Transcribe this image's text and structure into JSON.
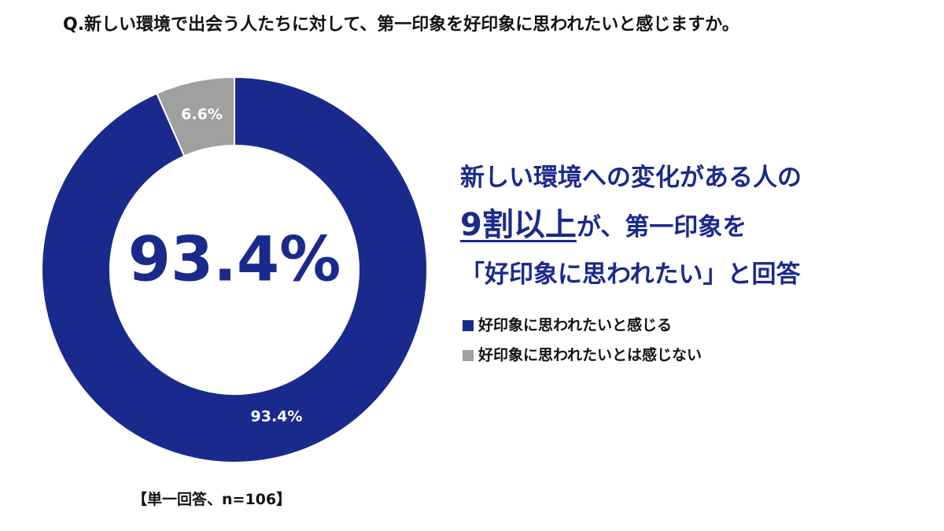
{
  "chart_data": {
    "type": "pie",
    "title": "Q.新しい環境で出会う人たちに対して、第一印象を好印象に思われたいと感じますか。",
    "categories": [
      "好印象に思われたいと感じる",
      "好印象に思われたいとは感じない"
    ],
    "values": [
      93.4,
      6.6
    ],
    "value_labels": [
      "93.4%",
      "6.6%"
    ],
    "colors": [
      "#1a2a8c",
      "#9fa0a0"
    ],
    "headline": {
      "line1": "新しい環境への変化がある人の",
      "emphasis": "9割以上",
      "line2_rest": "が、第一印象を",
      "line3": "「好印象に思われたい」と回答"
    },
    "note": "【単一回答、n=106】"
  }
}
